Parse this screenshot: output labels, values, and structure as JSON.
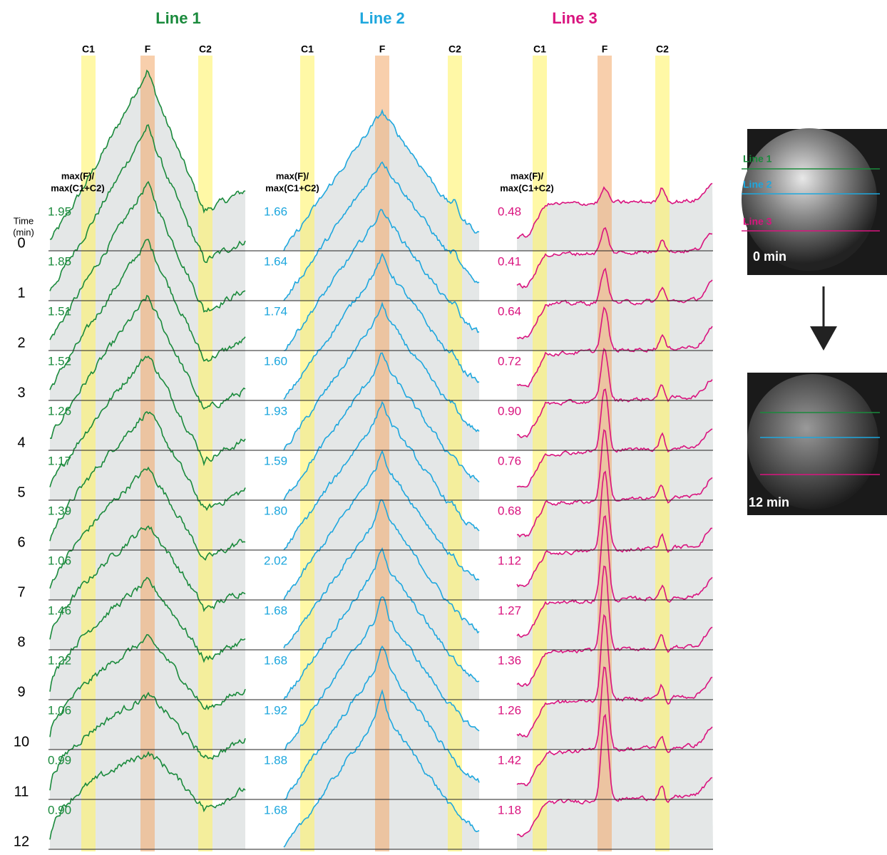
{
  "columns": [
    {
      "title": "Line 1",
      "color": "#1a8a3c",
      "markers": [
        "C1",
        "F",
        "C2"
      ],
      "ratio_label": [
        "max(F)/",
        "max(C1+C2)"
      ],
      "ratios": [
        "1.95",
        "1.85",
        "1.51",
        "1.52",
        "1.26",
        "1.17",
        "1.39",
        "1.06",
        "1.46",
        "1.22",
        "1.06",
        "0.99",
        "0.90"
      ]
    },
    {
      "title": "Line 2",
      "color": "#1ea7de",
      "markers": [
        "C1",
        "F",
        "C2"
      ],
      "ratio_label": [
        "max(F)/",
        "max(C1+C2)"
      ],
      "ratios": [
        "1.66",
        "1.64",
        "1.74",
        "1.60",
        "1.93",
        "1.59",
        "1.80",
        "2.02",
        "1.68",
        "1.68",
        "1.92",
        "1.88",
        "1.68"
      ]
    },
    {
      "title": "Line 3",
      "color": "#d9147f",
      "markers": [
        "C1",
        "F",
        "C2"
      ],
      "ratio_label": [
        "max(F)/",
        "max(C1+C2)"
      ],
      "ratios": [
        "0.48",
        "0.41",
        "0.64",
        "0.72",
        "0.90",
        "0.76",
        "0.68",
        "1.12",
        "1.27",
        "1.36",
        "1.26",
        "1.42",
        "1.18"
      ]
    }
  ],
  "time_label": [
    "Time",
    "(min)"
  ],
  "times": [
    0,
    1,
    2,
    3,
    4,
    5,
    6,
    7,
    8,
    9,
    10,
    11,
    12
  ],
  "images": [
    {
      "caption": "0 min",
      "lines": [
        "Line 1",
        "Line 2",
        "Line 3"
      ]
    },
    {
      "caption": "12 min"
    }
  ]
}
